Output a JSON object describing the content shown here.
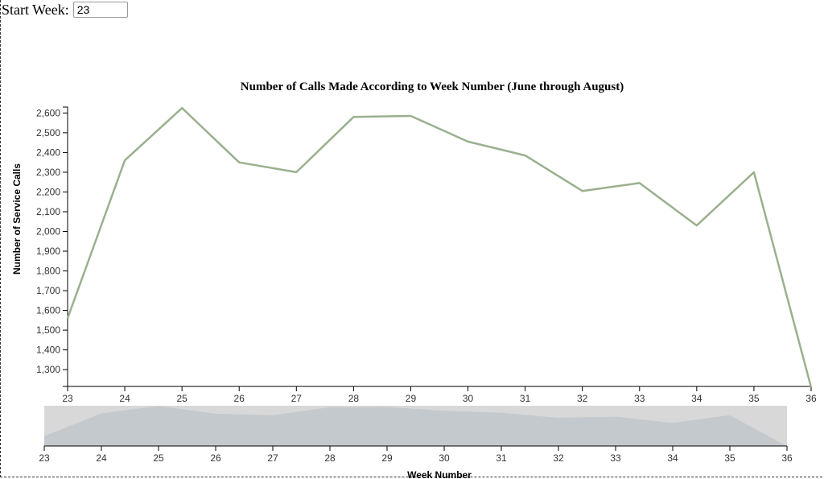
{
  "controls": {
    "start_week_label": "Start Week:",
    "start_week_value": "23"
  },
  "colors": {
    "line": "#9ab08e",
    "brush_area": "#c4c9cd",
    "brush_band": "#d8d8d8",
    "axis": "#000000"
  },
  "chart_data": {
    "type": "line",
    "title": "Number of Calls Made According to Week Number (June through August)",
    "xlabel": "Week Number",
    "ylabel": "Number of Service Calls",
    "x": [
      23,
      24,
      25,
      26,
      27,
      28,
      29,
      30,
      31,
      32,
      33,
      34,
      35,
      36
    ],
    "series": [
      {
        "values": [
          1560,
          2360,
          2625,
          2350,
          2300,
          2580,
          2585,
          2455,
          2385,
          2205,
          2245,
          2030,
          2300,
          1210
        ]
      }
    ],
    "xlim": [
      23,
      36
    ],
    "ylim": [
      1215,
      2630
    ],
    "yticks": [
      1300,
      1400,
      1500,
      1600,
      1700,
      1800,
      1900,
      2000,
      2100,
      2200,
      2300,
      2400,
      2500,
      2600
    ],
    "ytick_labels": [
      "1,300",
      "1,400",
      "1,500",
      "1,600",
      "1,700",
      "1,800",
      "1,900",
      "2,000",
      "2,100",
      "2,200",
      "2,300",
      "2,400",
      "2,500",
      "2,600"
    ],
    "xtick_labels": [
      "23",
      "24",
      "25",
      "26",
      "27",
      "28",
      "29",
      "30",
      "31",
      "32",
      "33",
      "34",
      "35",
      "36"
    ],
    "context": {
      "type": "area",
      "xlim": [
        23,
        36
      ],
      "xtick_labels": [
        "23",
        "24",
        "25",
        "26",
        "27",
        "28",
        "29",
        "30",
        "31",
        "32",
        "33",
        "34",
        "35",
        "36"
      ],
      "brush_extent": [
        23,
        36
      ]
    },
    "grid": false
  }
}
